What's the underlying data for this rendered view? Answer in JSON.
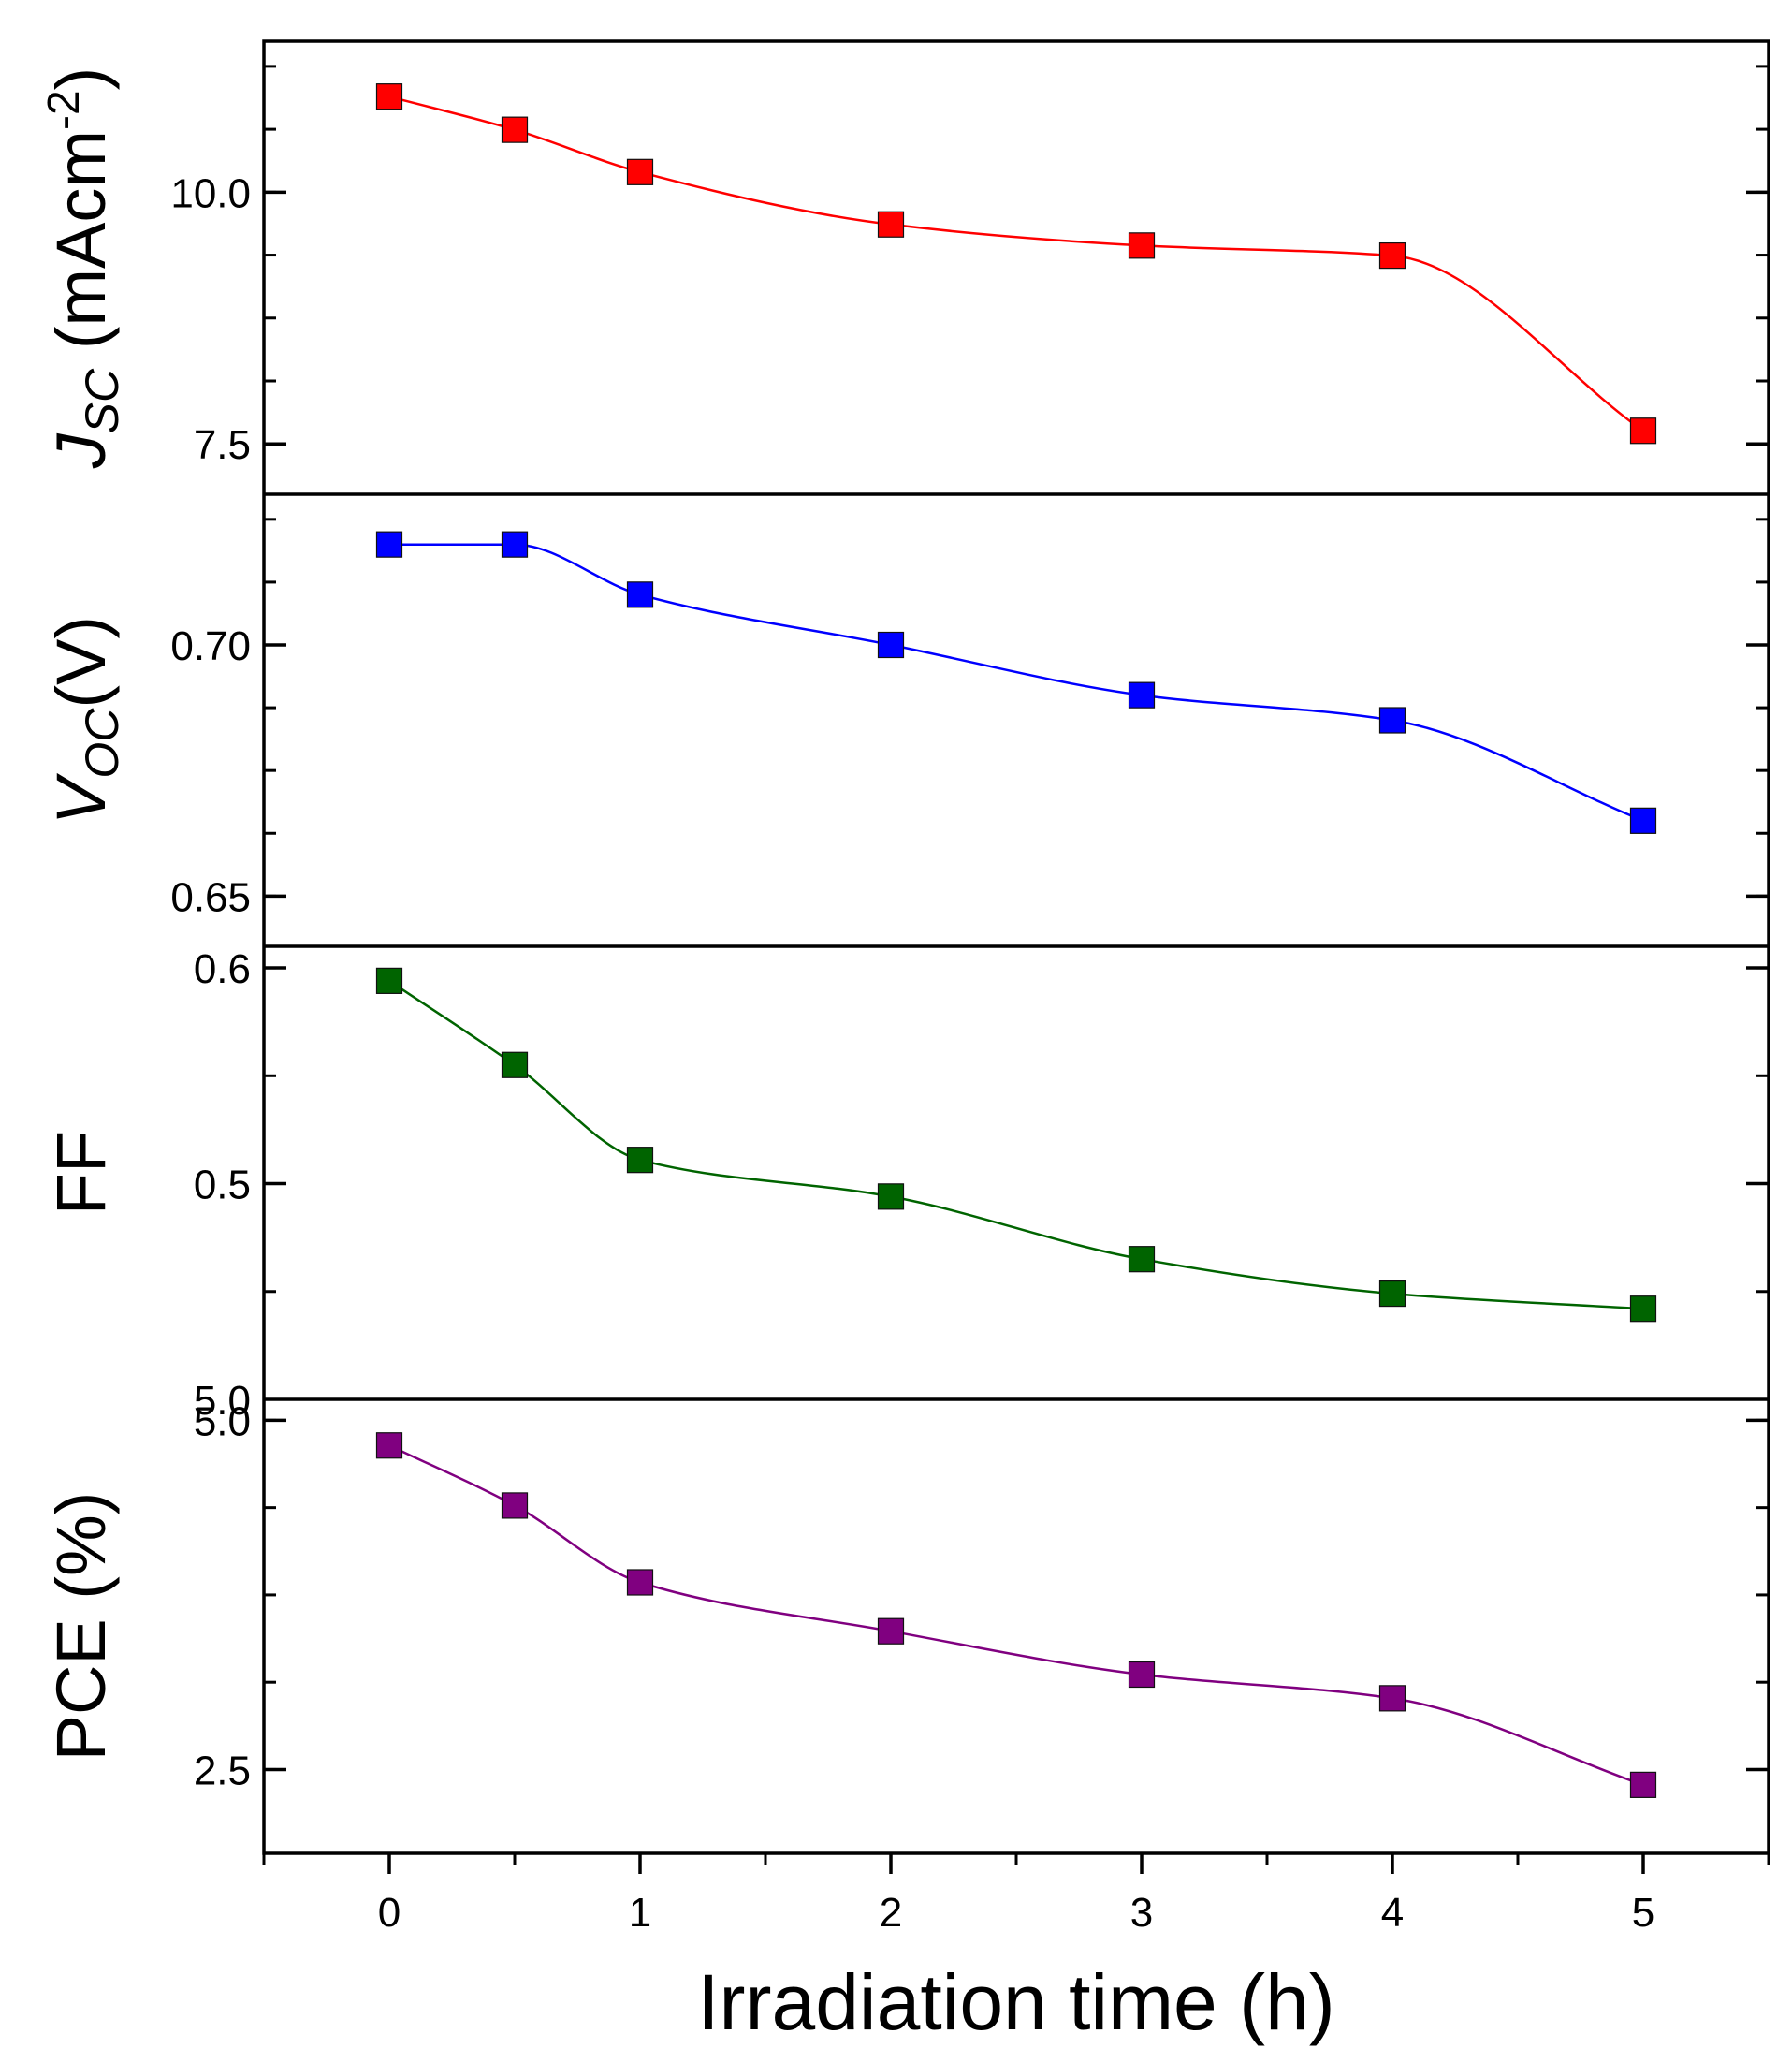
{
  "chart_data": {
    "type": "line",
    "layout": "stacked-panels-shared-x",
    "xlabel": "Irradiation time (h)",
    "xlim": [
      -0.5,
      5.5
    ],
    "x_ticks": [
      0,
      1,
      2,
      3,
      4,
      5
    ],
    "x_tick_labels": [
      "0",
      "1",
      "2",
      "3",
      "4",
      "5"
    ],
    "x": [
      0,
      0.5,
      1,
      2,
      3,
      4,
      5
    ],
    "panels": [
      {
        "id": "jsc",
        "ylabel_main": "J",
        "ylabel_sub": "SC",
        "ylabel_rest": " (mAcm",
        "ylabel_sup": "-2",
        "ylabel_end": ")",
        "ylim": [
          7.0,
          11.5
        ],
        "y_ticks": [
          7.5,
          10.0
        ],
        "y_tick_labels": [
          "7.5",
          "10.0"
        ],
        "minor_step": 0.625,
        "color": "#ff0000",
        "values": [
          10.95,
          10.62,
          10.2,
          9.68,
          9.47,
          9.37,
          7.63
        ]
      },
      {
        "id": "voc",
        "ylabel_main": "V",
        "ylabel_sub": "OC",
        "ylabel_rest": "(V)",
        "ylim": [
          0.64,
          0.73
        ],
        "y_ticks": [
          0.65,
          0.7
        ],
        "y_tick_labels": [
          "0.65",
          "0.70"
        ],
        "minor_step": 0.0125,
        "color": "#0000ff",
        "values": [
          0.72,
          0.72,
          0.71,
          0.7,
          0.69,
          0.685,
          0.665
        ]
      },
      {
        "id": "ff",
        "ylabel_main": "FF",
        "ylim": [
          0.4,
          0.61
        ],
        "y_ticks": [
          0.5,
          0.6
        ],
        "y_tick_labels": [
          "0.5",
          "0.6"
        ],
        "minor_step": 0.05,
        "color": "#006400",
        "values": [
          0.594,
          0.555,
          0.511,
          0.494,
          0.465,
          0.449,
          0.442
        ]
      },
      {
        "id": "pce",
        "ylabel_main": "PCE (%)",
        "ylim": [
          1.9,
          5.15
        ],
        "y_ticks": [
          2.5,
          5.0
        ],
        "y_tick_labels": [
          "2.5",
          "5.0"
        ],
        "minor_step": 0.625,
        "color": "#800080",
        "values": [
          4.82,
          4.39,
          3.84,
          3.49,
          3.18,
          3.01,
          2.39
        ]
      }
    ],
    "stray_tick_label": "5.0",
    "stray_tick_value": 0.4
  }
}
